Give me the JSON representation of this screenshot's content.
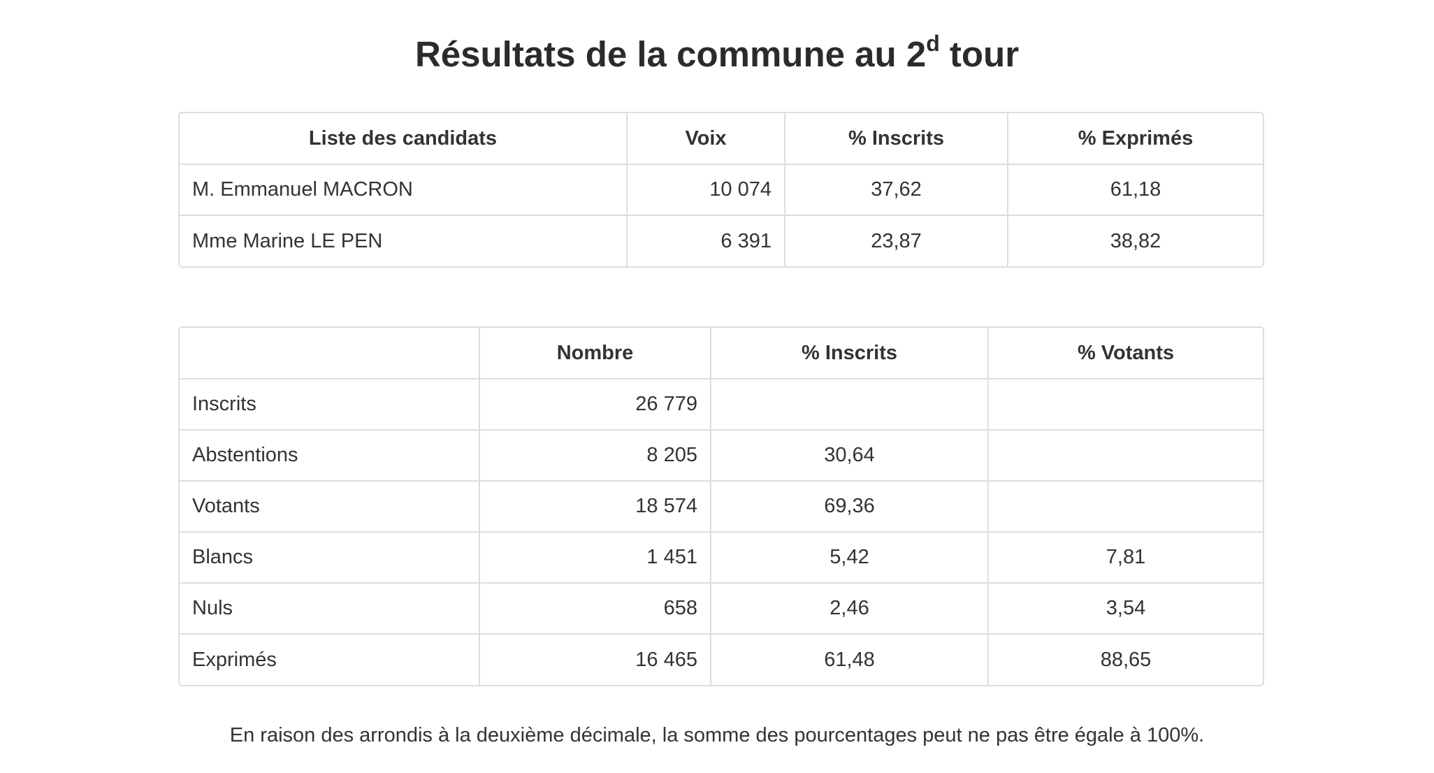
{
  "title": {
    "main": "Résultats de la commune au 2",
    "superscript": "d",
    "suffix": " tour"
  },
  "candidates_table": {
    "headers": [
      "Liste des candidats",
      "Voix",
      "% Inscrits",
      "% Exprimés"
    ],
    "rows": [
      {
        "name": "M. Emmanuel MACRON",
        "voix": "10 074",
        "pct_inscrits": "37,62",
        "pct_exprimes": "61,18"
      },
      {
        "name": "Mme Marine LE PEN",
        "voix": "6 391",
        "pct_inscrits": "23,87",
        "pct_exprimes": "38,82"
      }
    ]
  },
  "stats_table": {
    "headers": [
      "",
      "Nombre",
      "% Inscrits",
      "% Votants"
    ],
    "rows": [
      {
        "label": "Inscrits",
        "nombre": "26 779",
        "pct_inscrits": "",
        "pct_votants": ""
      },
      {
        "label": "Abstentions",
        "nombre": "8 205",
        "pct_inscrits": "30,64",
        "pct_votants": ""
      },
      {
        "label": "Votants",
        "nombre": "18 574",
        "pct_inscrits": "69,36",
        "pct_votants": ""
      },
      {
        "label": "Blancs",
        "nombre": "1 451",
        "pct_inscrits": "5,42",
        "pct_votants": "7,81"
      },
      {
        "label": "Nuls",
        "nombre": "658",
        "pct_inscrits": "2,46",
        "pct_votants": "3,54"
      },
      {
        "label": "Exprimés",
        "nombre": "16 465",
        "pct_inscrits": "61,48",
        "pct_votants": "88,65"
      }
    ]
  },
  "footnote": "En raison des arrondis à la deuxième décimale, la somme des pourcentages peut ne pas être égale à 100%."
}
